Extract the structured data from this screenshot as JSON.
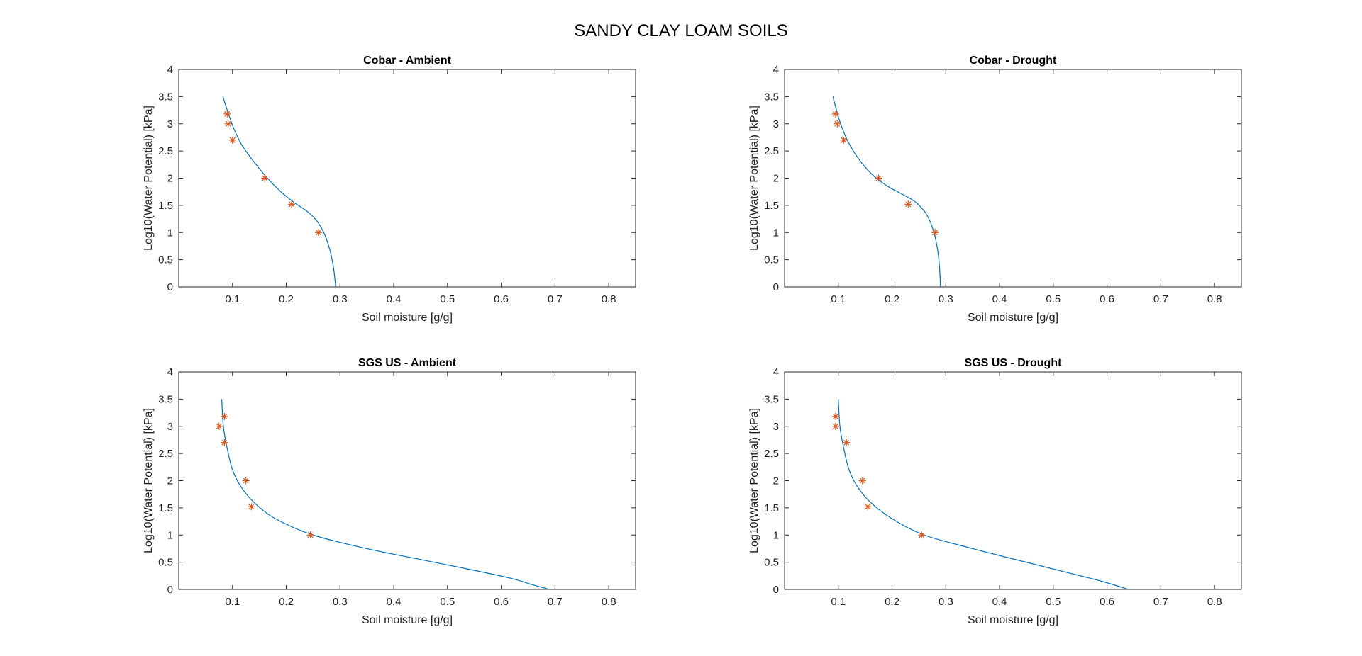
{
  "figure": {
    "title": "SANDY CLAY LOAM SOILS"
  },
  "style": {
    "curve_color": "#0072BD",
    "marker_color": "#D95319",
    "axes_color": "#262626"
  },
  "chart_data": [
    {
      "type": "line",
      "title": "Cobar - Ambient",
      "xlabel": "Soil moisture [g/g]",
      "ylabel": "Log10(Water Potential) [kPa]",
      "xlim": [
        0.0,
        0.85
      ],
      "ylim": [
        0,
        4
      ],
      "xticks": [
        "0.1",
        "0.2",
        "0.3",
        "0.4",
        "0.5",
        "0.6",
        "0.7",
        "0.8"
      ],
      "yticks": [
        "0",
        "0.5",
        "1",
        "1.5",
        "2",
        "2.5",
        "3",
        "3.5",
        "4"
      ],
      "grid": false,
      "series": [
        {
          "kind": "line",
          "x": [
            0.082,
            0.092,
            0.103,
            0.118,
            0.14,
            0.165,
            0.19,
            0.215,
            0.24,
            0.258,
            0.272,
            0.282,
            0.288,
            0.291,
            0.292
          ],
          "y": [
            3.5,
            3.2,
            2.9,
            2.6,
            2.3,
            2.0,
            1.75,
            1.55,
            1.38,
            1.2,
            0.95,
            0.65,
            0.35,
            0.1,
            0
          ]
        },
        {
          "kind": "scatter",
          "marker": "*",
          "x": [
            0.09,
            0.092,
            0.1,
            0.16,
            0.21,
            0.26
          ],
          "y": [
            3.18,
            3.0,
            2.7,
            2.0,
            1.52,
            1.0
          ]
        }
      ]
    },
    {
      "type": "line",
      "title": "Cobar - Drought",
      "xlabel": "Soil moisture [g/g]",
      "ylabel": "Log10(Water Potential) [kPa]",
      "xlim": [
        0.0,
        0.85
      ],
      "ylim": [
        0,
        4
      ],
      "xticks": [
        "0.1",
        "0.2",
        "0.3",
        "0.4",
        "0.5",
        "0.6",
        "0.7",
        "0.8"
      ],
      "yticks": [
        "0",
        "0.5",
        "1",
        "1.5",
        "2",
        "2.5",
        "3",
        "3.5",
        "4"
      ],
      "grid": false,
      "series": [
        {
          "kind": "line",
          "x": [
            0.09,
            0.098,
            0.108,
            0.122,
            0.142,
            0.165,
            0.192,
            0.22,
            0.245,
            0.265,
            0.278,
            0.286,
            0.289,
            0.29
          ],
          "y": [
            3.5,
            3.2,
            2.9,
            2.6,
            2.3,
            2.05,
            1.85,
            1.7,
            1.55,
            1.32,
            1.0,
            0.6,
            0.25,
            0
          ]
        },
        {
          "kind": "scatter",
          "marker": "*",
          "x": [
            0.095,
            0.098,
            0.11,
            0.175,
            0.23,
            0.28
          ],
          "y": [
            3.18,
            3.0,
            2.7,
            2.0,
            1.52,
            1.0
          ]
        }
      ]
    },
    {
      "type": "line",
      "title": "SGS US - Ambient",
      "xlabel": "Soil moisture [g/g]",
      "ylabel": "Log10(Water Potential) [kPa]",
      "xlim": [
        0.0,
        0.85
      ],
      "ylim": [
        0,
        4
      ],
      "xticks": [
        "0.1",
        "0.2",
        "0.3",
        "0.4",
        "0.5",
        "0.6",
        "0.7",
        "0.8"
      ],
      "yticks": [
        "0",
        "0.5",
        "1",
        "1.5",
        "2",
        "2.5",
        "3",
        "3.5",
        "4"
      ],
      "grid": false,
      "series": [
        {
          "kind": "line",
          "x": [
            0.08,
            0.083,
            0.09,
            0.1,
            0.115,
            0.14,
            0.18,
            0.25,
            0.35,
            0.45,
            0.55,
            0.62,
            0.66,
            0.69
          ],
          "y": [
            3.5,
            3.0,
            2.6,
            2.2,
            1.9,
            1.6,
            1.3,
            1.0,
            0.75,
            0.55,
            0.35,
            0.2,
            0.08,
            0
          ]
        },
        {
          "kind": "scatter",
          "marker": "*",
          "x": [
            0.075,
            0.085,
            0.085,
            0.125,
            0.135,
            0.245
          ],
          "y": [
            3.0,
            3.18,
            2.7,
            2.0,
            1.52,
            1.0
          ]
        }
      ]
    },
    {
      "type": "line",
      "title": "SGS US - Drought",
      "xlabel": "Soil moisture [g/g]",
      "ylabel": "Log10(Water Potential) [kPa]",
      "xlim": [
        0.0,
        0.85
      ],
      "ylim": [
        0,
        4
      ],
      "xticks": [
        "0.1",
        "0.2",
        "0.3",
        "0.4",
        "0.5",
        "0.6",
        "0.7",
        "0.8"
      ],
      "yticks": [
        "0",
        "0.5",
        "1",
        "1.5",
        "2",
        "2.5",
        "3",
        "3.5",
        "4"
      ],
      "grid": false,
      "series": [
        {
          "kind": "line",
          "x": [
            0.1,
            0.103,
            0.11,
            0.12,
            0.135,
            0.16,
            0.2,
            0.26,
            0.35,
            0.45,
            0.53,
            0.59,
            0.64
          ],
          "y": [
            3.5,
            3.0,
            2.6,
            2.2,
            1.9,
            1.6,
            1.3,
            1.0,
            0.75,
            0.5,
            0.3,
            0.15,
            0
          ]
        },
        {
          "kind": "scatter",
          "marker": "*",
          "x": [
            0.095,
            0.095,
            0.115,
            0.145,
            0.155,
            0.255
          ],
          "y": [
            3.18,
            3.0,
            2.7,
            2.0,
            1.52,
            1.0
          ]
        }
      ]
    }
  ]
}
